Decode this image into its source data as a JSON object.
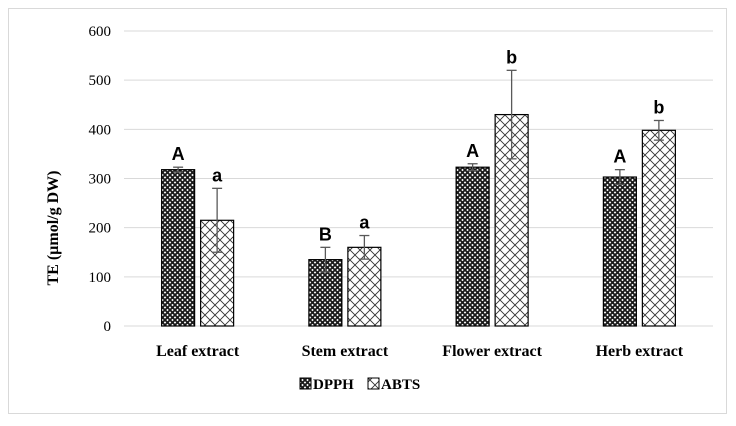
{
  "chart_data": {
    "type": "bar",
    "title": "",
    "xlabel": "",
    "ylabel": "TE (µmol/g DW)",
    "ylim": [
      0,
      600
    ],
    "yticks": [
      0,
      100,
      200,
      300,
      400,
      500,
      600
    ],
    "grid": true,
    "legend_position": "bottom",
    "categories": [
      "Leaf extract",
      "Stem extract",
      "Flower extract",
      "Herb extract"
    ],
    "series": [
      {
        "name": "DPPH",
        "pattern": "dark-crosshatch",
        "values": [
          318,
          135,
          323,
          303
        ],
        "errors": [
          5,
          25,
          7,
          15
        ],
        "labels": [
          "A",
          "B",
          "A",
          "A"
        ]
      },
      {
        "name": "ABTS",
        "pattern": "light-crosshatch",
        "values": [
          215,
          160,
          430,
          398
        ],
        "errors": [
          65,
          24,
          90,
          20
        ],
        "labels": [
          "a",
          "a",
          "b",
          "b"
        ]
      }
    ],
    "colors": {
      "bar_outline": "#000000",
      "dark_fill": "#404040",
      "light_fill": "#ffffff",
      "grid": "#d9d9d9",
      "error_bar": "#595959"
    }
  }
}
